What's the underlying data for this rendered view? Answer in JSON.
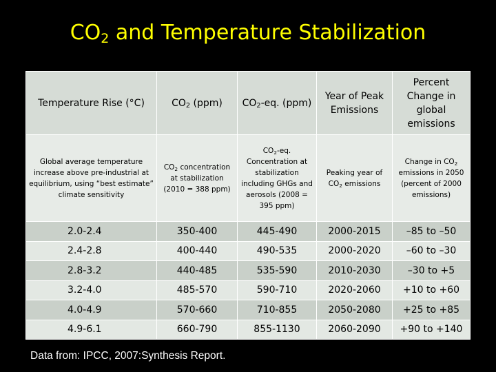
{
  "title": {
    "prefix": "CO",
    "sub": "2",
    "suffix": " and Temperature Stabilization"
  },
  "header": {
    "col1": "Temperature Rise (°C)",
    "col2_prefix": "CO",
    "col2_sub": "2",
    "col2_suffix": " (ppm)",
    "col3_prefix": "CO",
    "col3_sub": "2",
    "col3_suffix": "-eq. (ppm)",
    "col4": "Year of Peak Emissions",
    "col5": "Percent Change in global emissions"
  },
  "description": {
    "col1": "Global average temperature increase above pre-industrial at equilibrium, using “best estimate” climate sensitivity",
    "col2_prefix": "CO",
    "col2_sub": "2",
    "col2_suffix": " concentration at stabilization (2010 = 388 ppm)",
    "col3_prefix": "CO",
    "col3_sub": "2",
    "col3_suffix": "-eq. Concentration at stabilization including GHGs and aerosols (2008 = 395 ppm)",
    "col4_prefix": "Peaking year of CO",
    "col4_sub": "2",
    "col4_suffix": " emissions",
    "col5_prefix": "Change in CO",
    "col5_sub": "2",
    "col5_suffix": " emissions in 2050 (percent of 2000 emissions)"
  },
  "rows": [
    [
      "2.0-2.4",
      "350-400",
      "445-490",
      "2000-2015",
      "–85 to –50"
    ],
    [
      "2.4-2.8",
      "400-440",
      "490-535",
      "2000-2020",
      "–60 to –30"
    ],
    [
      "2.8-3.2",
      "440-485",
      "535-590",
      "2010-2030",
      "–30 to +5"
    ],
    [
      "3.2-4.0",
      "485-570",
      "590-710",
      "2020-2060",
      "+10 to +60"
    ],
    [
      "4.0-4.9",
      "570-660",
      "710-855",
      "2050-2080",
      "+25 to +85"
    ],
    [
      "4.9-6.1",
      "660-790",
      "855-1130",
      "2060-2090",
      "+90 to +140"
    ]
  ],
  "source": "Data from: IPCC, 2007:Synthesis Report."
}
